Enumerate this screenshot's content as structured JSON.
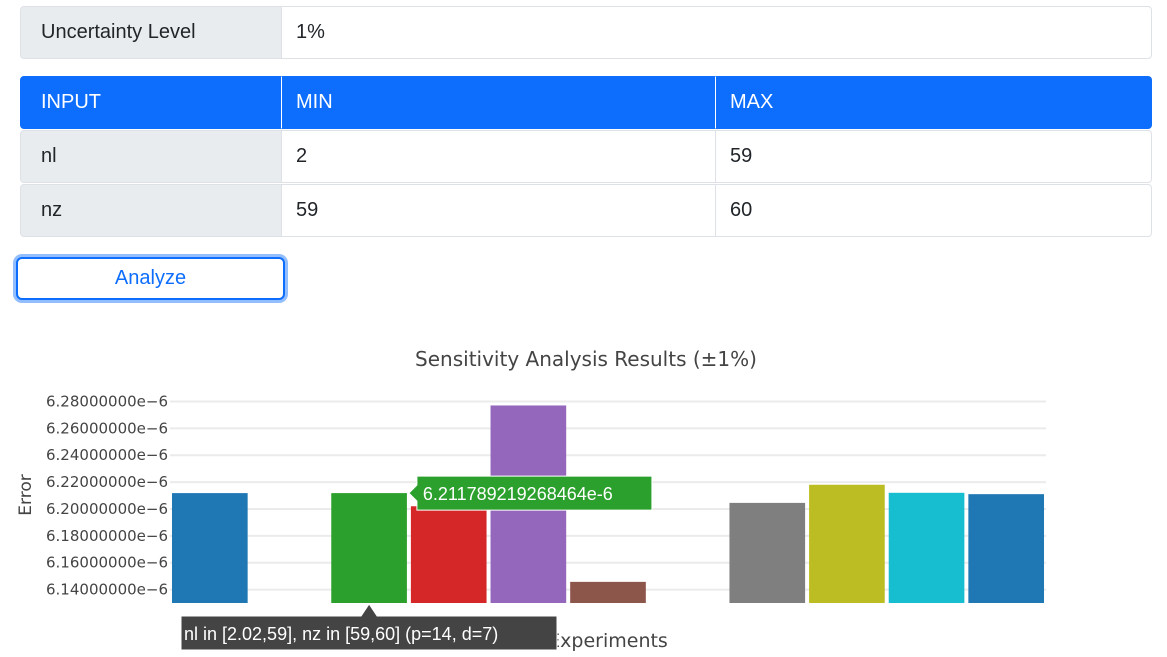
{
  "uncertainty": {
    "label": "Uncertainty Level",
    "value": "1%"
  },
  "table": {
    "headers": [
      "INPUT",
      "MIN",
      "MAX"
    ],
    "rows": [
      {
        "input": "nl",
        "min": "2",
        "max": "59"
      },
      {
        "input": "nz",
        "min": "59",
        "max": "60"
      }
    ]
  },
  "analyze_label": "Analyze",
  "colors": {
    "accent": "#0d6efd",
    "label_bg": "#e9ecef",
    "tooltip_value_bg": "#2ca02c",
    "tooltip_label_bg": "#444444"
  },
  "chart_data": {
    "type": "bar",
    "title": "Sensitivity Analysis Results (±1%)",
    "xlabel": "Experiments",
    "ylabel": "Error",
    "ylim": [
      6.13e-06,
      6.29e-06
    ],
    "yticks": [
      6.14e-06,
      6.16e-06,
      6.18e-06,
      6.2e-06,
      6.22e-06,
      6.24e-06,
      6.26e-06,
      6.28e-06
    ],
    "ytick_labels": [
      "6.14000000e−6",
      "6.16000000e−6",
      "6.18000000e−6",
      "6.20000000e−6",
      "6.22000000e−6",
      "6.24000000e−6",
      "6.26000000e−6",
      "6.28000000e−6"
    ],
    "grid": true,
    "bars": [
      {
        "value": 6.21178e-06,
        "color": "#1f77b4"
      },
      {
        "value": null,
        "color": "#ff7f0e"
      },
      {
        "value": 6.211789219268464e-06,
        "color": "#2ca02c"
      },
      {
        "value": 6.202e-06,
        "color": "#d62728"
      },
      {
        "value": 6.277e-06,
        "color": "#9467bd"
      },
      {
        "value": 6.14573e-06,
        "color": "#8c564b"
      },
      {
        "value": null,
        "color": "#e377c2"
      },
      {
        "value": 6.2045e-06,
        "color": "#7f7f7f"
      },
      {
        "value": 6.218e-06,
        "color": "#bcbd22"
      },
      {
        "value": 6.212e-06,
        "color": "#17becf"
      },
      {
        "value": 6.211e-06,
        "color": "#1f77b4"
      }
    ],
    "hover": {
      "bar_index": 2,
      "value_text": "6.211789219268464e-6",
      "label_text": "nl in [2.02,59], nz in [59,60] (p=14, d=7)"
    }
  }
}
